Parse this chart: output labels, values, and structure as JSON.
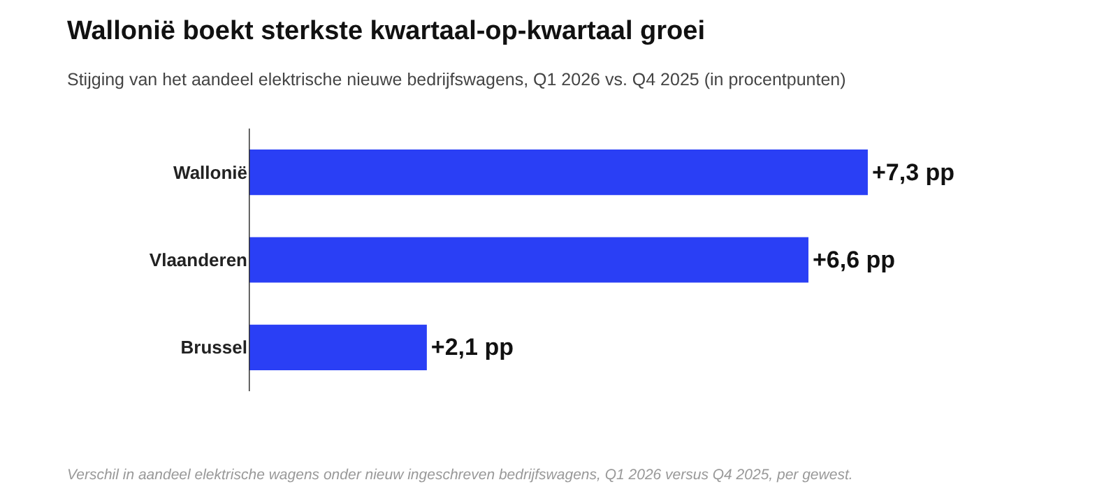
{
  "chart_data": {
    "type": "bar",
    "orientation": "horizontal",
    "title": "Wallonië boekt sterkste kwartaal-op-kwartaal groei",
    "subtitle": "Stijging van het aandeel elektrische nieuwe bedrijfswagens, Q1 2026 vs. Q4 2025 (in procentpunten)",
    "categories": [
      "Wallonië",
      "Vlaanderen",
      "Brussel"
    ],
    "values": [
      7.3,
      6.6,
      2.1
    ],
    "value_labels": [
      "+7,3 pp",
      "+6,6 pp",
      "+2,1 pp"
    ],
    "color": "#2a3ff5",
    "legend": false,
    "tick_labels": "y",
    "annotations": [
      "Verschil in aandeel elektrische wagens onder nieuw ingeschreven bedrijfswagens, Q1 2026 versus Q4 2025, per gewest."
    ]
  }
}
